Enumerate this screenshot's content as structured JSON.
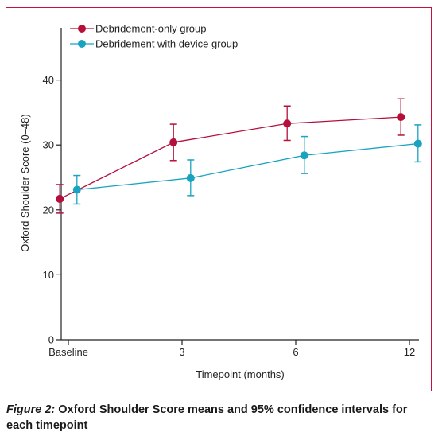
{
  "chart_data": {
    "type": "line",
    "xlabel": "Timepoint (months)",
    "ylabel": "Oxford Shoulder Score (0–48)",
    "categories": [
      "Baseline",
      "3",
      "6",
      "12"
    ],
    "ylim": [
      0,
      48
    ],
    "yticks": [
      0,
      10,
      20,
      30,
      40
    ],
    "legend_position": "top-left",
    "grid": false,
    "series": [
      {
        "name": "Debridement-only group",
        "color": "#b5103c",
        "x_offset": -0.15,
        "values": [
          21.7,
          30.4,
          33.3,
          34.3
        ],
        "ci_low": [
          19.5,
          27.6,
          30.7,
          31.5
        ],
        "ci_high": [
          23.9,
          33.2,
          36.0,
          37.1
        ]
      },
      {
        "name": "Debridement with device group",
        "color": "#1aa3c0",
        "x_offset": 0.15,
        "values": [
          23.1,
          24.9,
          28.4,
          30.2
        ],
        "ci_low": [
          20.9,
          22.2,
          25.6,
          27.4
        ],
        "ci_high": [
          25.3,
          27.7,
          31.3,
          33.1
        ]
      }
    ]
  },
  "caption": {
    "lead": "Figure 2:",
    "text": " Oxford Shoulder Score means and 95% confidence intervals for each timepoint"
  }
}
